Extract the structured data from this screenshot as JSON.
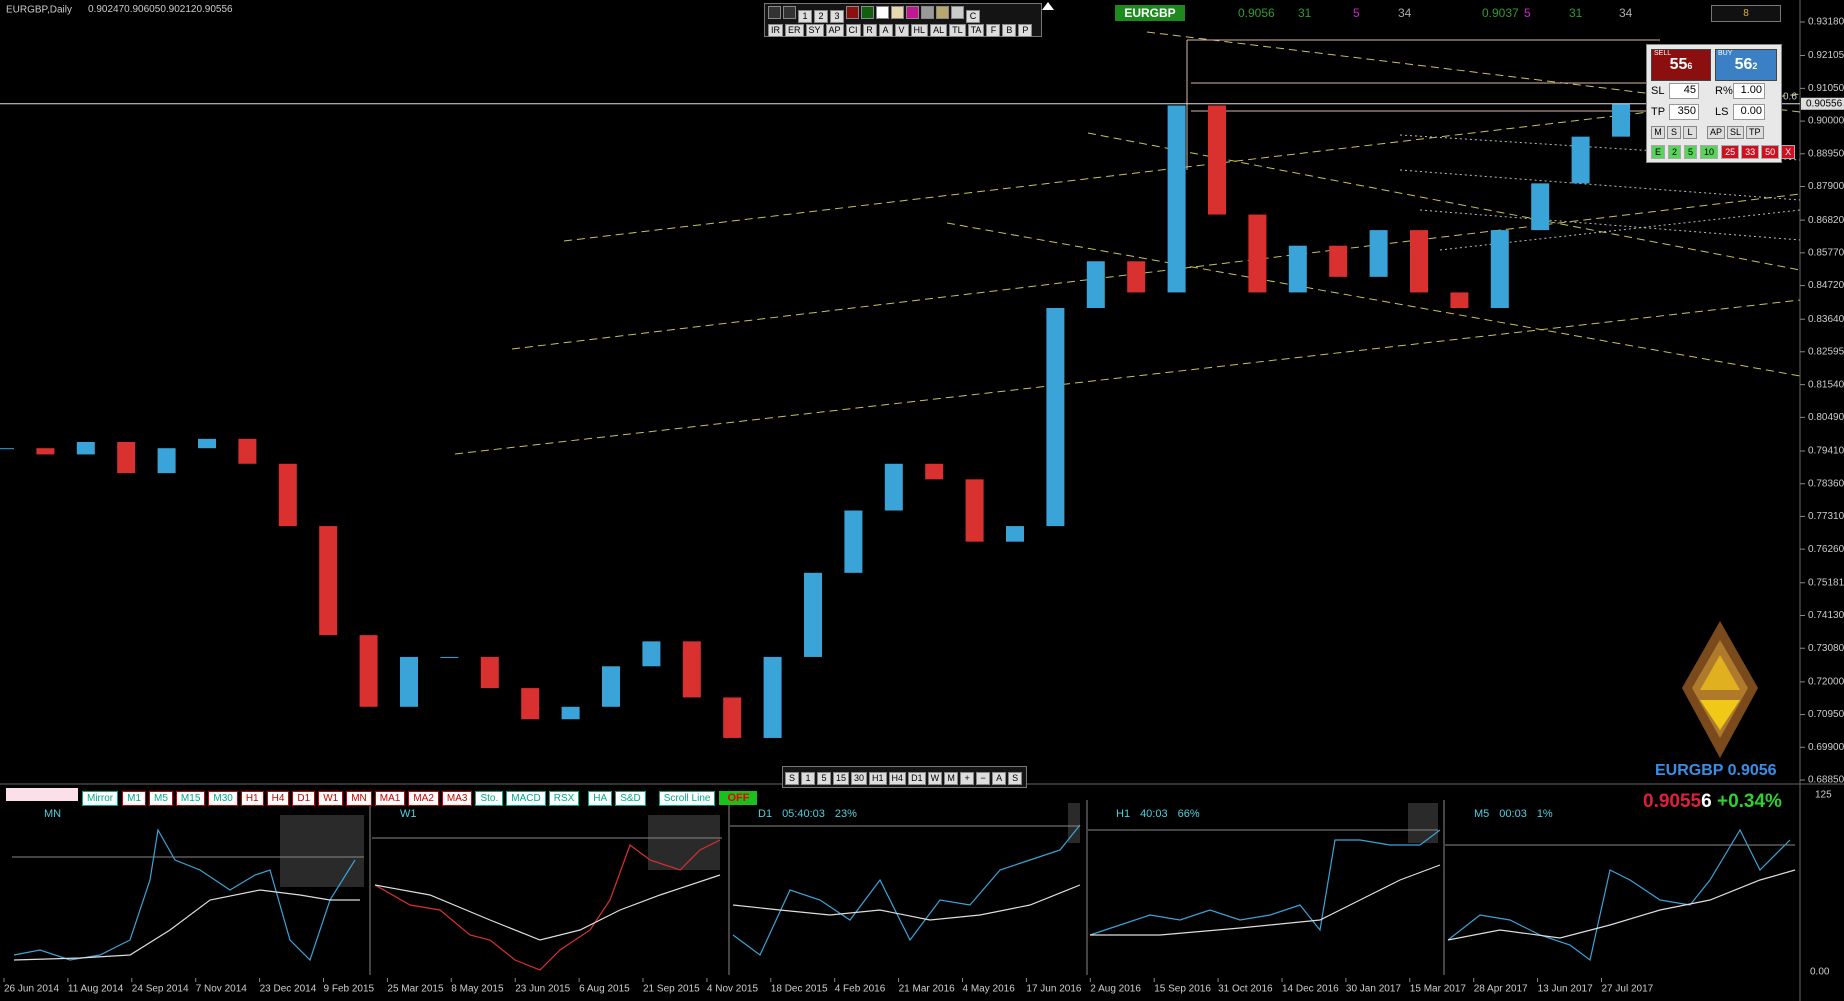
{
  "header": {
    "symbol_period": "EURGBP,Daily",
    "ohlc": [
      "0.90247",
      "0.90605",
      "0.90212",
      "0.90556"
    ]
  },
  "toolbar": {
    "row1": [
      "1",
      "2",
      "3",
      "C"
    ],
    "row2": [
      "IR",
      "ER",
      "SY",
      "AP",
      "CI",
      "R",
      "A",
      "V",
      "HL",
      "AL",
      "TL",
      "TA",
      "F",
      "B",
      "P"
    ]
  },
  "symbol_bar": {
    "symbol": "EURGBP",
    "values": [
      "0.9056",
      "31",
      "5",
      "34",
      "0.9037",
      "5",
      "31",
      "34"
    ],
    "badge": "8"
  },
  "trade_panel": {
    "sell_label": "SELL",
    "sell_big": "55",
    "sell_small": "6",
    "buy_label": "BUY",
    "buy_big": "56",
    "buy_small": "2",
    "sl_label": "SL",
    "sl": "45",
    "risk_label": "R%",
    "risk": "1.00",
    "tp_label": "TP",
    "tp": "350",
    "ls_label": "LS",
    "ls": "0.00",
    "buttons": [
      "M",
      "S",
      "L",
      "AP",
      "SL",
      "TP"
    ],
    "lots": [
      "E",
      "2",
      "5",
      "10",
      "25",
      "33",
      "50",
      "X"
    ]
  },
  "chart_data": {
    "type": "candlestick",
    "closes": [
      0.795,
      0.793,
      0.797,
      0.787,
      0.795,
      0.798,
      0.79,
      0.77,
      0.735,
      0.712,
      0.728,
      0.728,
      0.718,
      0.708,
      0.712,
      0.725,
      0.733,
      0.715,
      0.702,
      0.728,
      0.755,
      0.775,
      0.79,
      0.785,
      0.765,
      0.77,
      0.84,
      0.855,
      0.845,
      0.905,
      0.87,
      0.845,
      0.86,
      0.85,
      0.865,
      0.845,
      0.84,
      0.865,
      0.88,
      0.895,
      0.90556
    ],
    "ylim": [
      0.6885,
      0.9318
    ],
    "yticks": [
      {
        "value": 0.9318,
        "label": "0.93180"
      },
      {
        "value": 0.92105,
        "label": "0.92105"
      },
      {
        "value": 0.9105,
        "label": "0.91050"
      },
      {
        "value": 0.9,
        "label": "0.90000"
      },
      {
        "value": 0.8895,
        "label": "0.88950"
      },
      {
        "value": 0.879,
        "label": "0.87900"
      },
      {
        "value": 0.8682,
        "label": "0.86820"
      },
      {
        "value": 0.8577,
        "label": "0.85770"
      },
      {
        "value": 0.8472,
        "label": "0.84720"
      },
      {
        "value": 0.8364,
        "label": "0.83640"
      },
      {
        "value": 0.82595,
        "label": "0.82595"
      },
      {
        "value": 0.8154,
        "label": "0.81540"
      },
      {
        "value": 0.8049,
        "label": "0.80490"
      },
      {
        "value": 0.7941,
        "label": "0.79410"
      },
      {
        "value": 0.7836,
        "label": "0.78360"
      },
      {
        "value": 0.7731,
        "label": "0.77310"
      },
      {
        "value": 0.7626,
        "label": "0.76260"
      },
      {
        "value": 0.75181,
        "label": "0.75181"
      },
      {
        "value": 0.7413,
        "label": "0.74130"
      },
      {
        "value": 0.7308,
        "label": "0.73080"
      },
      {
        "value": 0.72,
        "label": "0.72000"
      },
      {
        "value": 0.7095,
        "label": "0.70950"
      },
      {
        "value": 0.699,
        "label": "0.69900"
      },
      {
        "value": 0.6885,
        "label": "0.68850"
      }
    ],
    "current_price": {
      "value": 0.90556,
      "label": "0.90556"
    },
    "annotation": "0.6",
    "x_labels": [
      "26 Jun 2014",
      "11 Aug 2014",
      "24 Sep 2014",
      "7 Nov 2014",
      "23 Dec 2014",
      "9 Feb 2015",
      "25 Mar 2015",
      "8 May 2015",
      "23 Jun 2015",
      "6 Aug 2015",
      "21 Sep 2015",
      "4 Nov 2015",
      "18 Dec 2015",
      "4 Feb 2016",
      "21 Mar 2016",
      "4 May 2016",
      "17 Jun 2016",
      "2 Aug 2016",
      "15 Sep 2016",
      "31 Oct 2016",
      "14 Dec 2016",
      "30 Jan 2017",
      "15 Mar 2017",
      "28 Apr 2017",
      "13 Jun 2017",
      "27 Jul 2017"
    ]
  },
  "timeframe_bar": [
    "S",
    "1",
    "5",
    "15",
    "30",
    "H1",
    "H4",
    "D1",
    "W",
    "M",
    "+",
    "−",
    "A",
    "S"
  ],
  "quote": {
    "symbol_price": "EURGBP 0.9056",
    "price_main": "0.9055",
    "price_pipette": "6",
    "change": "+0.34%"
  },
  "bottom_toolbar": {
    "mirror": "Mirror",
    "timeframes": [
      "M1",
      "M5",
      "M15",
      "M30",
      "H1",
      "H4",
      "D1",
      "W1",
      "MN"
    ],
    "indicators": [
      "MA1",
      "MA2",
      "MA3",
      "Sto.",
      "MACD",
      "RSX",
      "HA",
      "S&D"
    ],
    "scroll": "Scroll Line",
    "state": "OFF"
  },
  "mini_charts": [
    {
      "label": "MN"
    },
    {
      "label": "W1"
    },
    {
      "label": "D1",
      "timer": "05:40:03",
      "percent": "23%"
    },
    {
      "label": "H1",
      "timer": "40:03",
      "percent": "66%"
    },
    {
      "label": "M5",
      "timer": "00:03",
      "percent": "1%"
    }
  ],
  "sub_axis": [
    "125",
    "0.00"
  ]
}
